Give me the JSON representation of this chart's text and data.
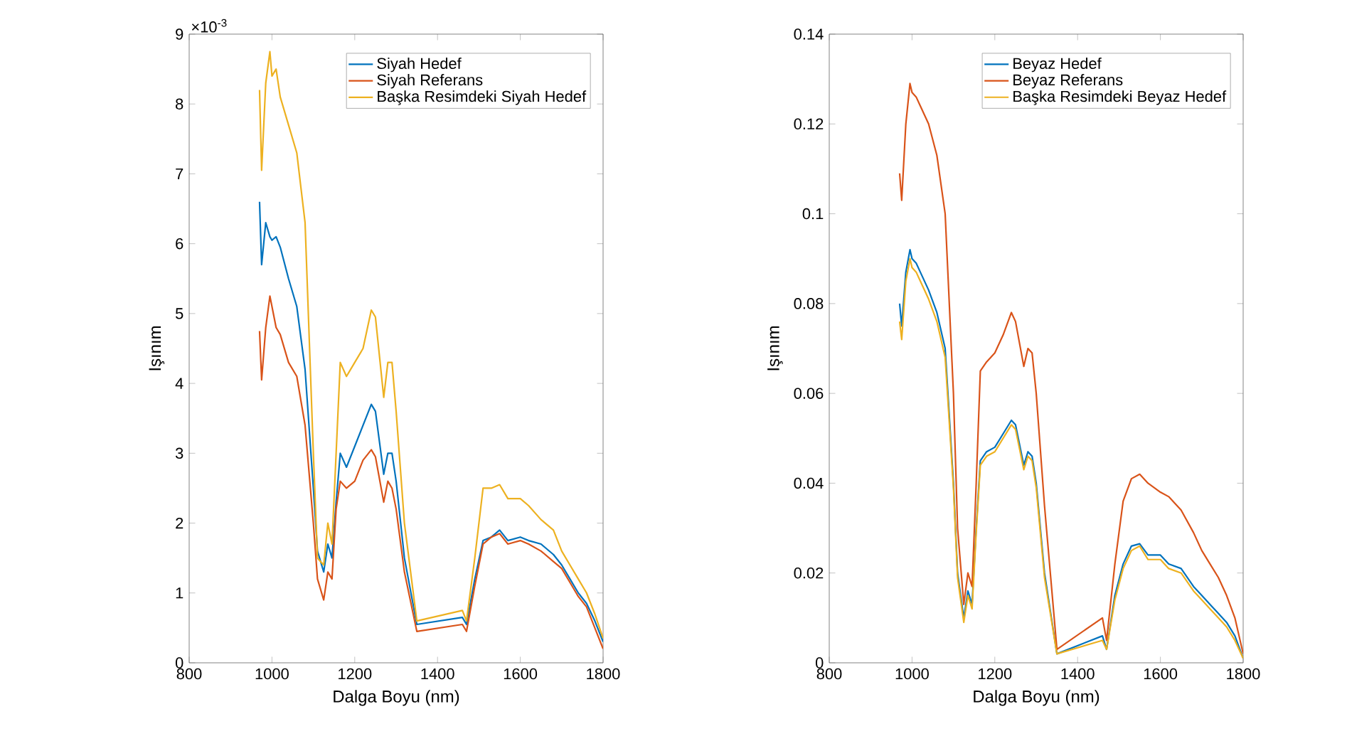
{
  "chart_data": [
    {
      "type": "line",
      "xlabel": "Dalga Boyu  (nm)",
      "ylabel": "Işınım",
      "annotations": [
        "×10$^{-3}$"
      ],
      "xlim": [
        800,
        1800
      ],
      "ylim": [
        0,
        9
      ],
      "xticks": [
        800,
        1000,
        1200,
        1400,
        1600,
        1800
      ],
      "yticks": [
        0,
        1,
        2,
        3,
        4,
        5,
        6,
        7,
        8,
        9
      ],
      "legend": "top right",
      "line_style": "solid",
      "x": [
        970,
        975,
        985,
        995,
        1000,
        1010,
        1020,
        1040,
        1060,
        1080,
        1100,
        1110,
        1125,
        1135,
        1145,
        1155,
        1165,
        1180,
        1200,
        1220,
        1240,
        1250,
        1270,
        1280,
        1290,
        1300,
        1320,
        1350,
        1460,
        1470,
        1490,
        1510,
        1530,
        1550,
        1570,
        1600,
        1620,
        1650,
        1680,
        1700,
        1720,
        1740,
        1760,
        1780,
        1800
      ],
      "series": [
        {
          "name": "Siyah Hedef",
          "color": "#0072bd",
          "values": [
            6.6,
            5.7,
            6.3,
            6.1,
            6.05,
            6.1,
            5.95,
            5.5,
            5.1,
            4.2,
            2.5,
            1.6,
            1.3,
            1.7,
            1.5,
            2.3,
            3.0,
            2.8,
            3.1,
            3.4,
            3.7,
            3.6,
            2.7,
            3.0,
            3.0,
            2.6,
            1.5,
            0.55,
            0.65,
            0.55,
            1.2,
            1.75,
            1.8,
            1.9,
            1.75,
            1.8,
            1.75,
            1.7,
            1.55,
            1.4,
            1.2,
            1.0,
            0.85,
            0.6,
            0.3
          ]
        },
        {
          "name": "Siyah Referans",
          "color": "#d95319",
          "values": [
            4.75,
            4.05,
            4.8,
            5.25,
            5.1,
            4.8,
            4.7,
            4.3,
            4.1,
            3.4,
            2.0,
            1.2,
            0.9,
            1.3,
            1.2,
            2.2,
            2.6,
            2.5,
            2.6,
            2.9,
            3.05,
            2.95,
            2.3,
            2.6,
            2.5,
            2.2,
            1.3,
            0.45,
            0.55,
            0.45,
            1.1,
            1.7,
            1.8,
            1.85,
            1.7,
            1.75,
            1.7,
            1.6,
            1.45,
            1.35,
            1.15,
            0.95,
            0.8,
            0.5,
            0.2
          ]
        },
        {
          "name": "Başka Resimdeki Siyah Hedef",
          "color": "#edb120",
          "values": [
            8.2,
            7.05,
            8.3,
            8.75,
            8.4,
            8.5,
            8.1,
            7.7,
            7.3,
            6.3,
            3.0,
            1.5,
            1.4,
            2.0,
            1.7,
            3.0,
            4.3,
            4.1,
            4.3,
            4.5,
            5.05,
            4.95,
            3.8,
            4.3,
            4.3,
            3.6,
            2.0,
            0.6,
            0.75,
            0.6,
            1.5,
            2.5,
            2.5,
            2.55,
            2.35,
            2.35,
            2.25,
            2.05,
            1.9,
            1.6,
            1.4,
            1.2,
            1.0,
            0.7,
            0.35
          ]
        }
      ]
    },
    {
      "type": "line",
      "xlabel": "Dalga Boyu (nm)",
      "ylabel": "Işınım",
      "xlim": [
        800,
        1800
      ],
      "ylim": [
        0,
        0.14
      ],
      "xticks": [
        800,
        1000,
        1200,
        1400,
        1600,
        1800
      ],
      "yticks": [
        0,
        0.02,
        0.04,
        0.06,
        0.08,
        0.1,
        0.12,
        0.14
      ],
      "legend": "top right",
      "line_style": "solid",
      "x": [
        970,
        975,
        985,
        995,
        1000,
        1010,
        1020,
        1040,
        1060,
        1080,
        1100,
        1110,
        1125,
        1135,
        1145,
        1155,
        1165,
        1180,
        1200,
        1220,
        1240,
        1250,
        1270,
        1280,
        1290,
        1300,
        1320,
        1350,
        1460,
        1470,
        1490,
        1510,
        1530,
        1550,
        1570,
        1600,
        1620,
        1650,
        1680,
        1700,
        1720,
        1740,
        1760,
        1780,
        1800
      ],
      "series": [
        {
          "name": "Beyaz Hedef",
          "color": "#0072bd",
          "values": [
            0.08,
            0.075,
            0.087,
            0.092,
            0.09,
            0.089,
            0.087,
            0.083,
            0.078,
            0.07,
            0.04,
            0.02,
            0.01,
            0.016,
            0.013,
            0.03,
            0.045,
            0.047,
            0.048,
            0.051,
            0.054,
            0.053,
            0.044,
            0.047,
            0.046,
            0.04,
            0.02,
            0.002,
            0.006,
            0.003,
            0.015,
            0.022,
            0.026,
            0.0265,
            0.024,
            0.024,
            0.022,
            0.021,
            0.017,
            0.015,
            0.013,
            0.011,
            0.009,
            0.006,
            0.001
          ]
        },
        {
          "name": "Beyaz Referans",
          "color": "#d95319",
          "values": [
            0.109,
            0.103,
            0.12,
            0.129,
            0.127,
            0.126,
            0.124,
            0.12,
            0.113,
            0.1,
            0.06,
            0.03,
            0.013,
            0.02,
            0.017,
            0.04,
            0.065,
            0.067,
            0.069,
            0.073,
            0.078,
            0.076,
            0.066,
            0.07,
            0.069,
            0.06,
            0.035,
            0.003,
            0.01,
            0.005,
            0.022,
            0.036,
            0.041,
            0.042,
            0.04,
            0.038,
            0.037,
            0.034,
            0.029,
            0.025,
            0.022,
            0.019,
            0.015,
            0.01,
            0.002
          ]
        },
        {
          "name": "Başka Resimdeki Beyaz Hedef",
          "color": "#edb120",
          "values": [
            0.076,
            0.072,
            0.085,
            0.09,
            0.088,
            0.087,
            0.085,
            0.081,
            0.076,
            0.068,
            0.039,
            0.019,
            0.009,
            0.015,
            0.012,
            0.029,
            0.044,
            0.046,
            0.047,
            0.05,
            0.053,
            0.052,
            0.043,
            0.046,
            0.045,
            0.039,
            0.019,
            0.002,
            0.005,
            0.003,
            0.014,
            0.021,
            0.025,
            0.026,
            0.023,
            0.023,
            0.021,
            0.02,
            0.016,
            0.014,
            0.012,
            0.01,
            0.008,
            0.005,
            0.001
          ]
        }
      ]
    }
  ]
}
